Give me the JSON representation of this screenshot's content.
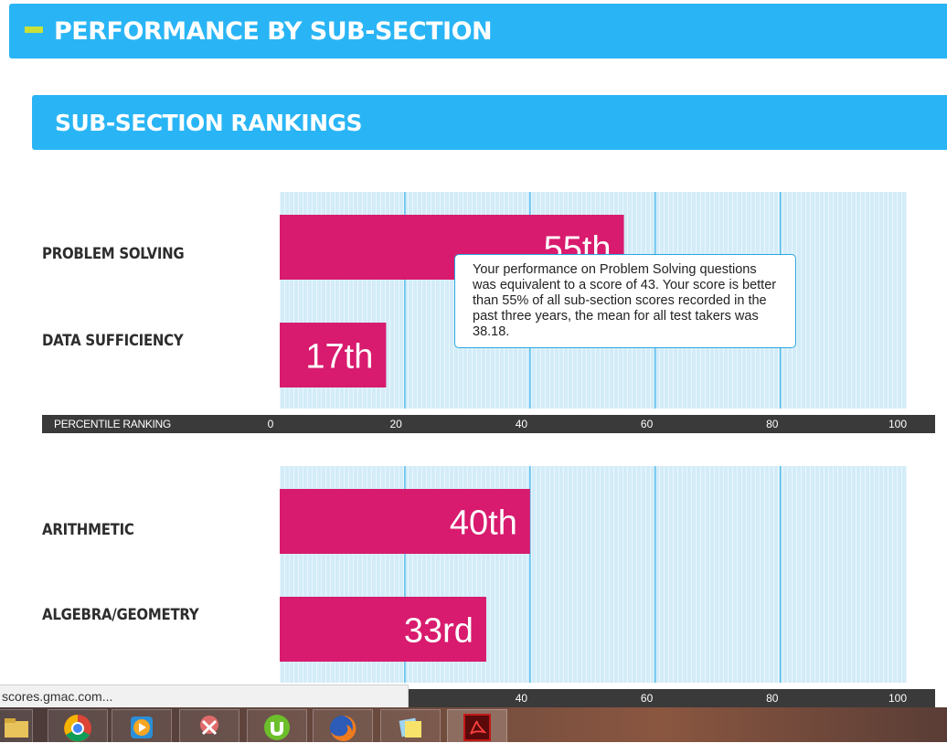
{
  "header": {
    "title": "PERFORMANCE BY SUB-SECTION",
    "subtitle": "SUB-SECTION RANKINGS"
  },
  "colors": {
    "banner": "#29b5f5",
    "bar": "#d81b6e",
    "plot_bg": "#d3ecf8",
    "gridline": "#3bb4ea",
    "axis_bar": "#3a3a3a"
  },
  "tooltip": {
    "text": "Your performance on Problem Solving questions was equivalent to a score of 43. Your score is better than 55% of all sub-section scores recorded in the past three years, the mean for all test takers was 38.18."
  },
  "chart_data": [
    {
      "type": "bar",
      "orientation": "horizontal",
      "categories": [
        "PROBLEM SOLVING",
        "DATA SUFFICIENCY"
      ],
      "values": [
        55,
        17
      ],
      "value_labels": [
        "55th",
        "17th"
      ],
      "xlabel": "PERCENTILE RANKING",
      "xlim": [
        0,
        100
      ],
      "xticks": [
        "0",
        "20",
        "40",
        "60",
        "80",
        "100"
      ],
      "gridlines_at": [
        20,
        40,
        60,
        80
      ]
    },
    {
      "type": "bar",
      "orientation": "horizontal",
      "categories": [
        "ARITHMETIC",
        "ALGEBRA/GEOMETRY"
      ],
      "values": [
        40,
        33
      ],
      "value_labels": [
        "40th",
        "33rd"
      ],
      "xlim": [
        0,
        100
      ],
      "xticks": [
        "40",
        "60",
        "80",
        "100"
      ],
      "gridlines_at": [
        20,
        40,
        60,
        80
      ]
    }
  ],
  "statusbar": {
    "url": "scores.gmac.com..."
  },
  "taskbar": {
    "apps": [
      "folder-icon",
      "chrome-icon",
      "media-player-icon",
      "snipping-tool-icon",
      "utorrent-icon",
      "firefox-icon",
      "sticky-notes-icon",
      "acrobat-icon"
    ]
  }
}
